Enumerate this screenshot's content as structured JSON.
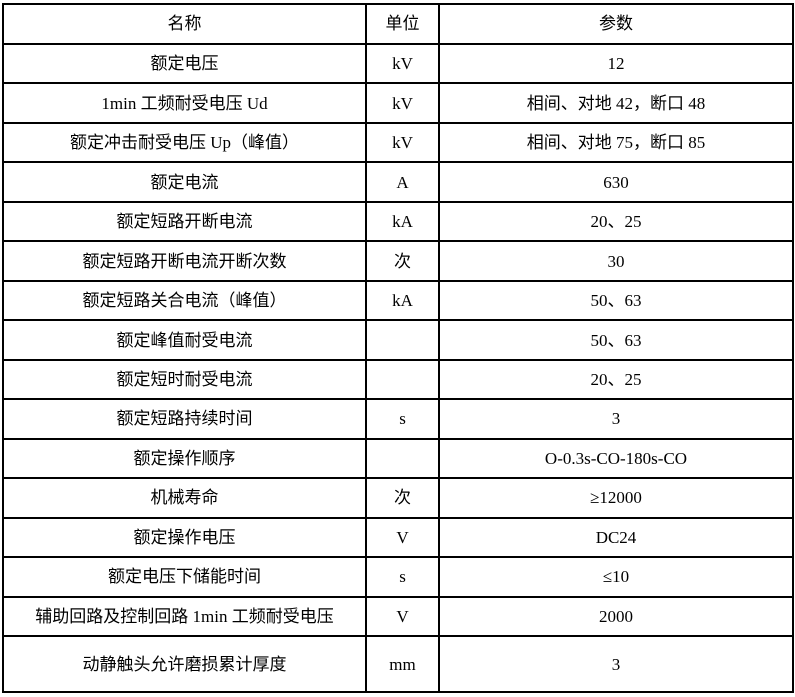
{
  "table": {
    "headers": [
      "名称",
      "单位",
      "参数"
    ],
    "rows": [
      {
        "name": "额定电压",
        "unit": "kV",
        "value": "12"
      },
      {
        "name": "1min 工频耐受电压 Ud",
        "unit": "kV",
        "value": "相间、对地 42，断口 48"
      },
      {
        "name": "额定冲击耐受电压 Up（峰值）",
        "unit": "kV",
        "value": "相间、对地 75，断口 85"
      },
      {
        "name": "额定电流",
        "unit": "A",
        "value": "630"
      },
      {
        "name": "额定短路开断电流",
        "unit": "kA",
        "value": "20、25"
      },
      {
        "name": "额定短路开断电流开断次数",
        "unit": "次",
        "value": "30"
      },
      {
        "name": "额定短路关合电流（峰值）",
        "unit": "kA",
        "value": "50、63"
      },
      {
        "name": "额定峰值耐受电流",
        "unit": "",
        "value": "50、63"
      },
      {
        "name": "额定短时耐受电流",
        "unit": "",
        "value": "20、25"
      },
      {
        "name": "额定短路持续时间",
        "unit": "s",
        "value": "3"
      },
      {
        "name": "额定操作顺序",
        "unit": "",
        "value": "O-0.3s-CO-180s-CO"
      },
      {
        "name": "机械寿命",
        "unit": "次",
        "value": "≥12000"
      },
      {
        "name": "额定操作电压",
        "unit": "V",
        "value": "DC24"
      },
      {
        "name": "额定电压下储能时间",
        "unit": "s",
        "value": "≤10"
      },
      {
        "name": "辅助回路及控制回路 1min 工频耐受电压",
        "unit": "V",
        "value": "2000"
      },
      {
        "name": "动静触头允许磨损累计厚度",
        "unit": "mm",
        "value": "3"
      }
    ]
  }
}
